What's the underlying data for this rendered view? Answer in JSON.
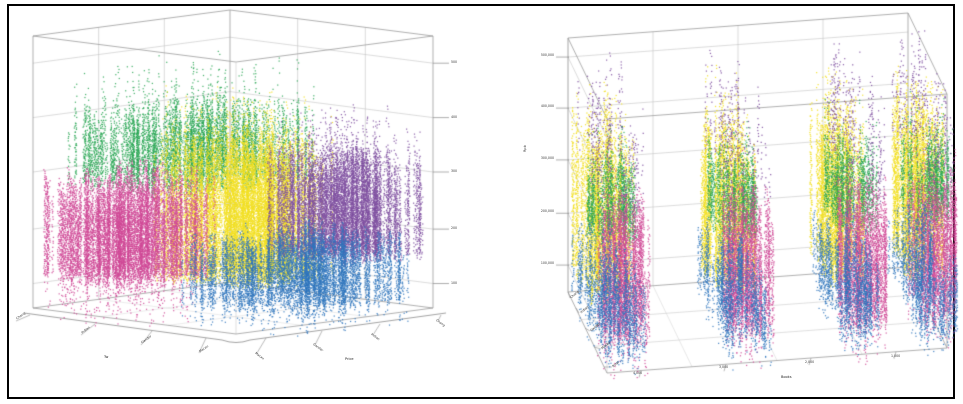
{
  "figure": {
    "background": "#ffffff",
    "border_color": "#000000"
  },
  "chart_data": [
    {
      "id": "left-3d-scatter",
      "type": "scatter",
      "projection": "3d",
      "description": "Dense 3D scatter cloud of five colored clusters drawn as vertical dotted streaks, cube viewed corner-on; magenta left, green upper-left, yellow center, purple right, blue bottom",
      "grid": true,
      "z_axis": {
        "ticks": [
          "100",
          "200",
          "300",
          "400",
          "500"
        ]
      },
      "y_axis": {
        "label": "Tw",
        "ticks": [
          "Chang",
          "Indian",
          "Gander",
          "Macau"
        ]
      },
      "x_axis": {
        "label": "Price",
        "ticks": [
          "Macau",
          "Gander",
          "Indian",
          "Chang"
        ]
      },
      "series": [
        {
          "name": "green",
          "color": "#27a552",
          "u": [
            0.05,
            0.75
          ],
          "v": [
            0.3,
            0.95
          ],
          "w": [
            0.45,
            0.76
          ],
          "streaks": 270,
          "tail": "up",
          "density": 0.7
        },
        {
          "name": "yellow",
          "color": "#f2df1f",
          "u": [
            0.28,
            0.75
          ],
          "v": [
            0.22,
            0.7
          ],
          "w": [
            0.1,
            0.66
          ],
          "streaks": 330,
          "tail": "up",
          "density": 0.7
        },
        {
          "name": "purple",
          "color": "#7e4fa0",
          "u": [
            0.6,
            0.98
          ],
          "v": [
            0.02,
            0.45
          ],
          "w": [
            0.18,
            0.6
          ],
          "streaks": 290,
          "tail": "up",
          "density": 0.7
        },
        {
          "name": "magenta",
          "color": "#cf4796",
          "u": [
            0.02,
            0.5
          ],
          "v": [
            0.55,
            1.0
          ],
          "w": [
            0.1,
            0.52
          ],
          "streaks": 300,
          "tail": "down",
          "density": 0.75
        },
        {
          "name": "blue",
          "color": "#2e74bd",
          "u": [
            0.3,
            0.98
          ],
          "v": [
            0.02,
            0.6
          ],
          "w": [
            0.02,
            0.3
          ],
          "streaks": 320,
          "tail": "down",
          "density": 0.75
        }
      ]
    },
    {
      "id": "right-3d-scatter",
      "type": "scatter",
      "projection": "3d",
      "description": "Same five-color clusters split into four parallel vertical slabs along the x axis; within each slab yellow at back, green upper middle, magenta at front, blue at bottom, sparse purple on top",
      "grid": true,
      "z_axis": {
        "label": "Rpb",
        "ticks": [
          "100,000",
          "200,000",
          "300,000",
          "400,000",
          "500,000"
        ]
      },
      "y_axis": {
        "ticks": [
          "Chang",
          "Indian",
          "Gander",
          "Macau",
          "Rizal"
        ]
      },
      "x_axis": {
        "label": "Books",
        "ticks": [
          "4,000",
          "3,000",
          "2,000",
          "1,000"
        ]
      },
      "slab_centers": [
        0.07,
        0.43,
        0.77,
        1.0
      ],
      "series": [
        {
          "name": "yellow",
          "color": "#f2df1f",
          "u": [
            -0.065,
            0.065
          ],
          "v": [
            0.5,
            0.98
          ],
          "w": [
            0.1,
            0.76
          ],
          "streaks": 85,
          "tail": "up",
          "density": 0.7
        },
        {
          "name": "green",
          "color": "#27a552",
          "u": [
            -0.065,
            0.065
          ],
          "v": [
            0.3,
            0.72
          ],
          "w": [
            0.36,
            0.66
          ],
          "streaks": 65,
          "tail": "up",
          "density": 0.7
        },
        {
          "name": "magenta",
          "color": "#cf4796",
          "u": [
            -0.065,
            0.065
          ],
          "v": [
            0.02,
            0.45
          ],
          "w": [
            0.08,
            0.6
          ],
          "streaks": 80,
          "tail": "both",
          "density": 0.75
        },
        {
          "name": "blue",
          "color": "#2e74bd",
          "u": [
            -0.065,
            0.065
          ],
          "v": [
            0.02,
            0.98
          ],
          "w": [
            0.0,
            0.3
          ],
          "streaks": 90,
          "tail": "down",
          "density": 0.7
        },
        {
          "name": "purple",
          "color": "#7e4fa0",
          "u": [
            -0.065,
            0.065
          ],
          "v": [
            0.02,
            0.98
          ],
          "w": [
            0.55,
            0.92
          ],
          "streaks": 30,
          "tail": "up",
          "density": 0.3
        }
      ]
    }
  ]
}
